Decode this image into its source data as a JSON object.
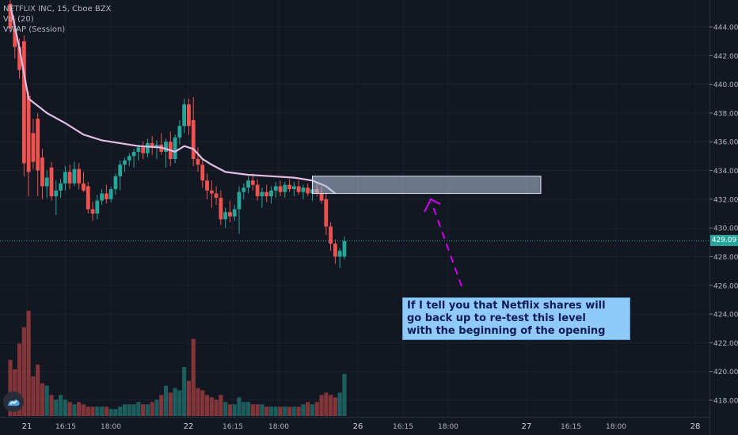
{
  "legend": {
    "symbol": "NETFLIX INC, 15, Cboe BZX",
    "vol": "Vol (20)",
    "vwap": "VWAP (Session)"
  },
  "annotation": {
    "line1": "If I tell you that Netflix shares will",
    "line2": "go back up to re-test this level",
    "line3": "with the beginning of the opening"
  },
  "last_price_label": "429.09",
  "colors": {
    "background": "#131722",
    "up": "#26a69a",
    "down": "#ef5350",
    "vwap": "#e1bee7",
    "zone": "#b3c6e0",
    "arrow": "#d500f9",
    "note_bg": "#90caf9"
  },
  "icons": {
    "logo": "tradingview-logo-icon"
  },
  "chart_data": {
    "type": "candlestick",
    "title": "NETFLIX INC, 15, Cboe BZX",
    "y_axis": {
      "ticks": [
        "444.00",
        "442.00",
        "440.00",
        "438.00",
        "436.00",
        "434.00",
        "432.00",
        "430.00",
        "428.00",
        "426.00",
        "424.00",
        "422.00",
        "420.00",
        "418.00"
      ],
      "range": [
        416.8,
        445.4
      ]
    },
    "x_axis": {
      "ticks": [
        "21",
        "16:15",
        "18:00",
        "22",
        "16:15",
        "18:00",
        "26",
        "16:15",
        "18:00",
        "27",
        "16:15",
        "18:00",
        "28"
      ]
    },
    "last_price": 429.09,
    "candles": [
      {
        "o": 445.6,
        "h": 446.0,
        "l": 443.6,
        "c": 443.9,
        "v": 24
      },
      {
        "o": 443.9,
        "h": 444.6,
        "l": 441.8,
        "c": 442.6,
        "v": 20
      },
      {
        "o": 442.6,
        "h": 443.2,
        "l": 440.4,
        "c": 441.0,
        "v": 31
      },
      {
        "o": 443.0,
        "h": 443.4,
        "l": 433.6,
        "c": 434.5,
        "v": 38
      },
      {
        "o": 439.2,
        "h": 439.5,
        "l": 432.2,
        "c": 433.9,
        "v": 45
      },
      {
        "o": 436.6,
        "h": 437.6,
        "l": 434.1,
        "c": 434.6,
        "v": 17
      },
      {
        "o": 437.6,
        "h": 438.0,
        "l": 432.2,
        "c": 434.0,
        "v": 22
      },
      {
        "o": 434.9,
        "h": 435.5,
        "l": 432.0,
        "c": 432.9,
        "v": 14
      },
      {
        "o": 432.9,
        "h": 434.0,
        "l": 432.1,
        "c": 433.5,
        "v": 13
      },
      {
        "o": 434.2,
        "h": 434.6,
        "l": 431.9,
        "c": 432.2,
        "v": 9
      },
      {
        "o": 432.2,
        "h": 433.3,
        "l": 430.9,
        "c": 432.6,
        "v": 7
      },
      {
        "o": 432.6,
        "h": 433.4,
        "l": 432.1,
        "c": 433.1,
        "v": 9
      },
      {
        "o": 433.1,
        "h": 434.3,
        "l": 432.6,
        "c": 433.9,
        "v": 7
      },
      {
        "o": 433.9,
        "h": 434.4,
        "l": 432.7,
        "c": 433.1,
        "v": 6
      },
      {
        "o": 433.1,
        "h": 434.6,
        "l": 432.9,
        "c": 434.1,
        "v": 5
      },
      {
        "o": 434.1,
        "h": 434.5,
        "l": 432.7,
        "c": 433.1,
        "v": 6
      },
      {
        "o": 433.1,
        "h": 433.9,
        "l": 432.5,
        "c": 432.6,
        "v": 5
      },
      {
        "o": 432.9,
        "h": 433.2,
        "l": 431.0,
        "c": 431.3,
        "v": 4
      },
      {
        "o": 431.3,
        "h": 431.8,
        "l": 430.5,
        "c": 431.0,
        "v": 4
      },
      {
        "o": 431.0,
        "h": 432.3,
        "l": 430.6,
        "c": 431.9,
        "v": 4
      },
      {
        "o": 431.9,
        "h": 432.7,
        "l": 431.6,
        "c": 432.4,
        "v": 4
      },
      {
        "o": 432.4,
        "h": 433.0,
        "l": 431.7,
        "c": 432.0,
        "v": 4
      },
      {
        "o": 432.0,
        "h": 432.9,
        "l": 431.8,
        "c": 432.7,
        "v": 3
      },
      {
        "o": 432.7,
        "h": 433.8,
        "l": 432.3,
        "c": 433.6,
        "v": 3
      },
      {
        "o": 433.6,
        "h": 434.7,
        "l": 432.6,
        "c": 434.4,
        "v": 4
      },
      {
        "o": 434.4,
        "h": 434.9,
        "l": 433.9,
        "c": 434.7,
        "v": 5
      },
      {
        "o": 434.7,
        "h": 435.2,
        "l": 434.3,
        "c": 435.0,
        "v": 5
      },
      {
        "o": 435.0,
        "h": 435.5,
        "l": 434.2,
        "c": 435.3,
        "v": 5
      },
      {
        "o": 435.3,
        "h": 435.8,
        "l": 434.7,
        "c": 435.6,
        "v": 6
      },
      {
        "o": 435.6,
        "h": 436.0,
        "l": 434.8,
        "c": 435.2,
        "v": 5
      },
      {
        "o": 435.2,
        "h": 436.2,
        "l": 434.9,
        "c": 435.9,
        "v": 5
      },
      {
        "o": 435.9,
        "h": 436.4,
        "l": 435.1,
        "c": 435.6,
        "v": 6
      },
      {
        "o": 435.6,
        "h": 436.1,
        "l": 434.8,
        "c": 435.8,
        "v": 7
      },
      {
        "o": 435.8,
        "h": 436.6,
        "l": 435.1,
        "c": 435.3,
        "v": 9
      },
      {
        "o": 435.3,
        "h": 436.2,
        "l": 434.2,
        "c": 436.0,
        "v": 13
      },
      {
        "o": 436.0,
        "h": 436.7,
        "l": 434.3,
        "c": 434.8,
        "v": 10
      },
      {
        "o": 434.8,
        "h": 436.5,
        "l": 434.5,
        "c": 436.3,
        "v": 12
      },
      {
        "o": 436.3,
        "h": 437.5,
        "l": 435.8,
        "c": 437.1,
        "v": 11
      },
      {
        "o": 437.1,
        "h": 439.0,
        "l": 436.6,
        "c": 438.6,
        "v": 21
      },
      {
        "o": 438.6,
        "h": 439.0,
        "l": 436.5,
        "c": 437.1,
        "v": 15
      },
      {
        "o": 437.5,
        "h": 439.1,
        "l": 434.3,
        "c": 434.8,
        "v": 33
      },
      {
        "o": 434.8,
        "h": 435.6,
        "l": 433.9,
        "c": 434.4,
        "v": 12
      },
      {
        "o": 434.4,
        "h": 434.8,
        "l": 432.8,
        "c": 433.3,
        "v": 11
      },
      {
        "o": 433.3,
        "h": 433.8,
        "l": 432.0,
        "c": 432.6,
        "v": 9
      },
      {
        "o": 432.6,
        "h": 433.3,
        "l": 431.4,
        "c": 432.4,
        "v": 8
      },
      {
        "o": 432.4,
        "h": 432.9,
        "l": 431.6,
        "c": 432.1,
        "v": 7
      },
      {
        "o": 432.1,
        "h": 432.6,
        "l": 430.2,
        "c": 430.6,
        "v": 9
      },
      {
        "o": 430.6,
        "h": 431.4,
        "l": 430.0,
        "c": 431.1,
        "v": 6
      },
      {
        "o": 431.1,
        "h": 431.9,
        "l": 430.4,
        "c": 430.8,
        "v": 5
      },
      {
        "o": 430.8,
        "h": 431.6,
        "l": 430.5,
        "c": 431.3,
        "v": 5
      },
      {
        "o": 431.3,
        "h": 432.9,
        "l": 429.6,
        "c": 432.5,
        "v": 8
      },
      {
        "o": 432.5,
        "h": 433.1,
        "l": 432.0,
        "c": 432.8,
        "v": 6
      },
      {
        "o": 432.8,
        "h": 433.6,
        "l": 432.4,
        "c": 433.3,
        "v": 6
      },
      {
        "o": 433.3,
        "h": 433.8,
        "l": 432.6,
        "c": 433.0,
        "v": 5
      },
      {
        "o": 433.0,
        "h": 433.4,
        "l": 431.9,
        "c": 432.2,
        "v": 5
      },
      {
        "o": 432.2,
        "h": 432.8,
        "l": 431.4,
        "c": 432.5,
        "v": 5
      },
      {
        "o": 432.5,
        "h": 433.0,
        "l": 431.8,
        "c": 432.2,
        "v": 4
      },
      {
        "o": 432.2,
        "h": 432.9,
        "l": 431.7,
        "c": 432.6,
        "v": 4
      },
      {
        "o": 432.6,
        "h": 433.2,
        "l": 432.1,
        "c": 432.9,
        "v": 4
      },
      {
        "o": 432.9,
        "h": 433.3,
        "l": 432.2,
        "c": 432.5,
        "v": 4
      },
      {
        "o": 432.5,
        "h": 433.2,
        "l": 432.1,
        "c": 433.0,
        "v": 4
      },
      {
        "o": 433.0,
        "h": 433.4,
        "l": 432.5,
        "c": 432.7,
        "v": 4
      },
      {
        "o": 432.7,
        "h": 433.2,
        "l": 432.2,
        "c": 432.9,
        "v": 4
      },
      {
        "o": 432.9,
        "h": 433.3,
        "l": 432.3,
        "c": 432.5,
        "v": 4
      },
      {
        "o": 432.5,
        "h": 433.0,
        "l": 432.0,
        "c": 432.8,
        "v": 5
      },
      {
        "o": 432.8,
        "h": 433.1,
        "l": 432.2,
        "c": 432.4,
        "v": 6
      },
      {
        "o": 432.4,
        "h": 433.0,
        "l": 431.9,
        "c": 432.7,
        "v": 5
      },
      {
        "o": 432.7,
        "h": 433.1,
        "l": 432.2,
        "c": 432.4,
        "v": 6
      },
      {
        "o": 432.4,
        "h": 432.9,
        "l": 431.7,
        "c": 431.9,
        "v": 9
      },
      {
        "o": 432.0,
        "h": 432.4,
        "l": 429.5,
        "c": 430.1,
        "v": 10
      },
      {
        "o": 430.1,
        "h": 430.4,
        "l": 428.4,
        "c": 428.9,
        "v": 9
      },
      {
        "o": 428.9,
        "h": 429.2,
        "l": 427.5,
        "c": 428.0,
        "v": 8
      },
      {
        "o": 428.0,
        "h": 428.6,
        "l": 427.2,
        "c": 428.4,
        "v": 10
      },
      {
        "o": 428.0,
        "h": 429.4,
        "l": 427.8,
        "c": 429.09,
        "v": 18
      }
    ],
    "vwap": [
      [
        0,
        445.5
      ],
      [
        2,
        442.5
      ],
      [
        4,
        439.0
      ],
      [
        8,
        438.0
      ],
      [
        12,
        437.3
      ],
      [
        16,
        436.5
      ],
      [
        20,
        436.1
      ],
      [
        24,
        435.9
      ],
      [
        28,
        435.7
      ],
      [
        33,
        435.6
      ],
      [
        36,
        435.3
      ],
      [
        38,
        435.7
      ],
      [
        40,
        435.5
      ],
      [
        42,
        434.8
      ],
      [
        44,
        434.4
      ],
      [
        47,
        433.9
      ],
      [
        52,
        433.7
      ],
      [
        57,
        433.6
      ],
      [
        62,
        433.5
      ],
      [
        66,
        433.3
      ],
      [
        69,
        432.9
      ],
      [
        71,
        432.4
      ]
    ],
    "levels": [
      {
        "type": "zone",
        "from": 432.4,
        "to": 433.6
      },
      {
        "type": "line",
        "value": 429.09
      }
    ]
  }
}
